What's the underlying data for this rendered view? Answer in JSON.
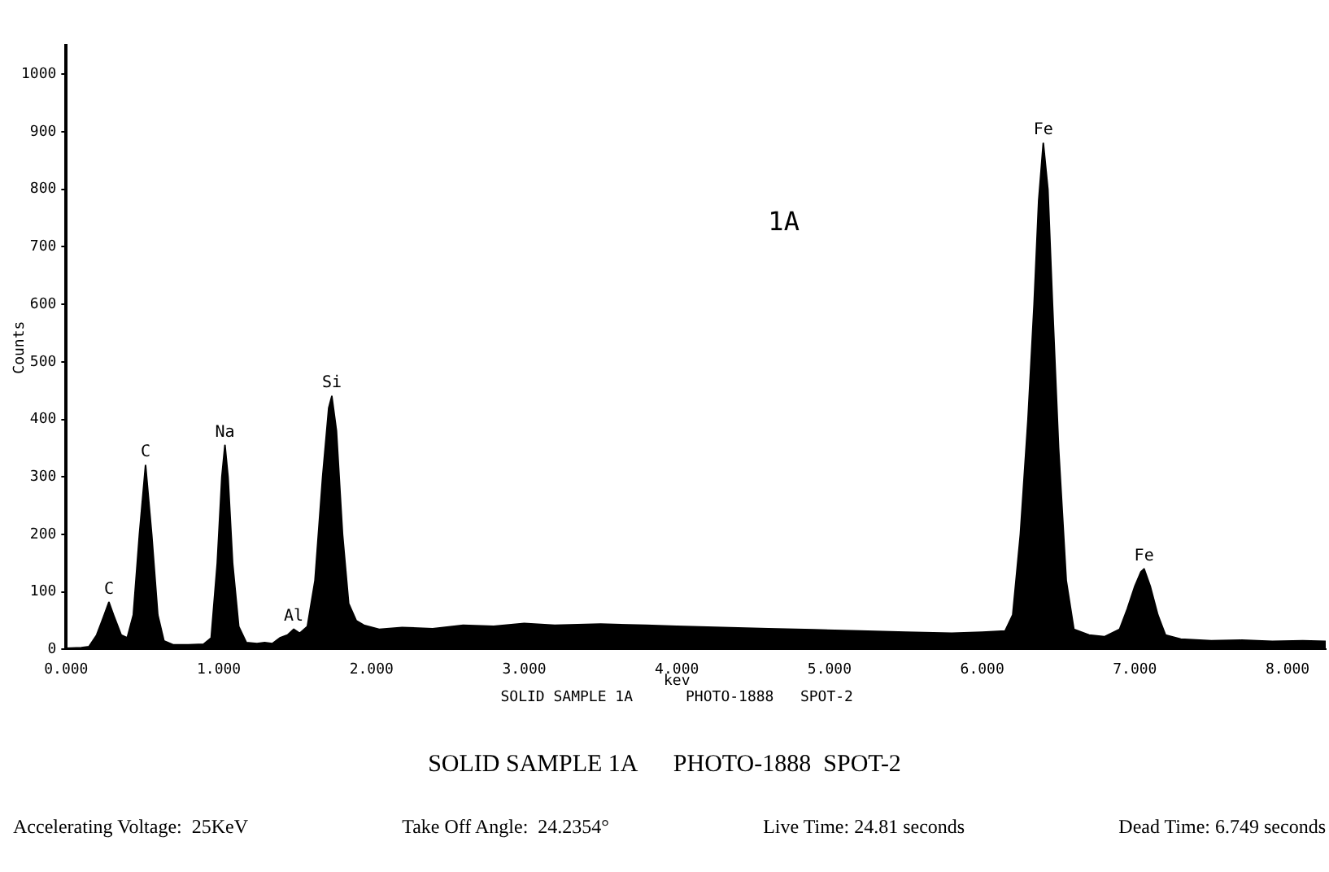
{
  "chart_data": {
    "type": "area",
    "title": "1A",
    "xlabel": "kev",
    "ylabel": "Counts",
    "x": [
      0,
      0.1,
      0.15,
      0.2,
      0.25,
      0.28,
      0.31,
      0.36,
      0.4,
      0.44,
      0.48,
      0.52,
      0.56,
      0.6,
      0.64,
      0.7,
      0.8,
      0.9,
      0.95,
      0.99,
      1.02,
      1.04,
      1.06,
      1.09,
      1.13,
      1.18,
      1.25,
      1.3,
      1.35,
      1.4,
      1.45,
      1.49,
      1.53,
      1.58,
      1.63,
      1.68,
      1.72,
      1.74,
      1.77,
      1.81,
      1.85,
      1.9,
      1.95,
      2.05,
      2.2,
      2.4,
      2.6,
      2.8,
      3.0,
      3.2,
      3.5,
      3.8,
      4.0,
      4.3,
      4.6,
      4.9,
      5.2,
      5.5,
      5.8,
      6.0,
      6.15,
      6.2,
      6.25,
      6.3,
      6.34,
      6.37,
      6.4,
      6.43,
      6.46,
      6.5,
      6.55,
      6.6,
      6.7,
      6.8,
      6.9,
      6.95,
      7.0,
      7.04,
      7.06,
      7.1,
      7.15,
      7.2,
      7.3,
      7.5,
      7.7,
      7.9,
      8.1,
      8.25
    ],
    "series": [
      {
        "color": "#000000",
        "values": [
          2,
          3,
          5,
          25,
          60,
          82,
          60,
          25,
          20,
          60,
          200,
          320,
          200,
          60,
          15,
          8,
          8,
          9,
          20,
          150,
          300,
          355,
          300,
          150,
          40,
          12,
          10,
          12,
          10,
          20,
          25,
          35,
          28,
          40,
          120,
          300,
          420,
          440,
          380,
          200,
          80,
          50,
          42,
          35,
          38,
          36,
          42,
          40,
          45,
          42,
          44,
          42,
          40,
          38,
          36,
          34,
          32,
          30,
          28,
          30,
          32,
          60,
          200,
          400,
          600,
          780,
          880,
          800,
          600,
          350,
          120,
          35,
          25,
          22,
          35,
          70,
          110,
          135,
          140,
          110,
          60,
          25,
          18,
          15,
          16,
          14,
          15,
          14
        ]
      }
    ],
    "xlim": [
      0,
      8.25
    ],
    "ylim": [
      0,
      1050
    ],
    "xticks": [
      {
        "value": 0,
        "label": "0.000"
      },
      {
        "value": 1,
        "label": "1.000"
      },
      {
        "value": 2,
        "label": "2.000"
      },
      {
        "value": 3,
        "label": "3.000"
      },
      {
        "value": 4,
        "label": "4.000"
      },
      {
        "value": 5,
        "label": "5.000"
      },
      {
        "value": 6,
        "label": "6.000"
      },
      {
        "value": 7,
        "label": "7.000"
      },
      {
        "value": 8,
        "label": "8.000"
      }
    ],
    "yticks": [
      0,
      100,
      200,
      300,
      400,
      500,
      600,
      700,
      800,
      900,
      1000
    ],
    "grid": false,
    "legend": false,
    "annotations": [
      {
        "text": "C",
        "x": 0.28,
        "y": 82
      },
      {
        "text": "C",
        "x": 0.52,
        "y": 320
      },
      {
        "text": "Na",
        "x": 1.04,
        "y": 355
      },
      {
        "text": "Al",
        "x": 1.49,
        "y": 35
      },
      {
        "text": "Si",
        "x": 1.74,
        "y": 440
      },
      {
        "text": "Fe",
        "x": 6.4,
        "y": 880
      },
      {
        "text": "Fe",
        "x": 7.06,
        "y": 140
      },
      "SOLID SAMPLE 1A      PHOTO-1888   SPOT-2",
      "SOLID SAMPLE 1A      PHOTO-1888  SPOT-2",
      "Accelerating Voltage:  25KeV",
      "Take Off Angle:  24.2354°",
      "Live Time: 24.81 seconds",
      "Dead Time: 6.749 seconds"
    ]
  }
}
